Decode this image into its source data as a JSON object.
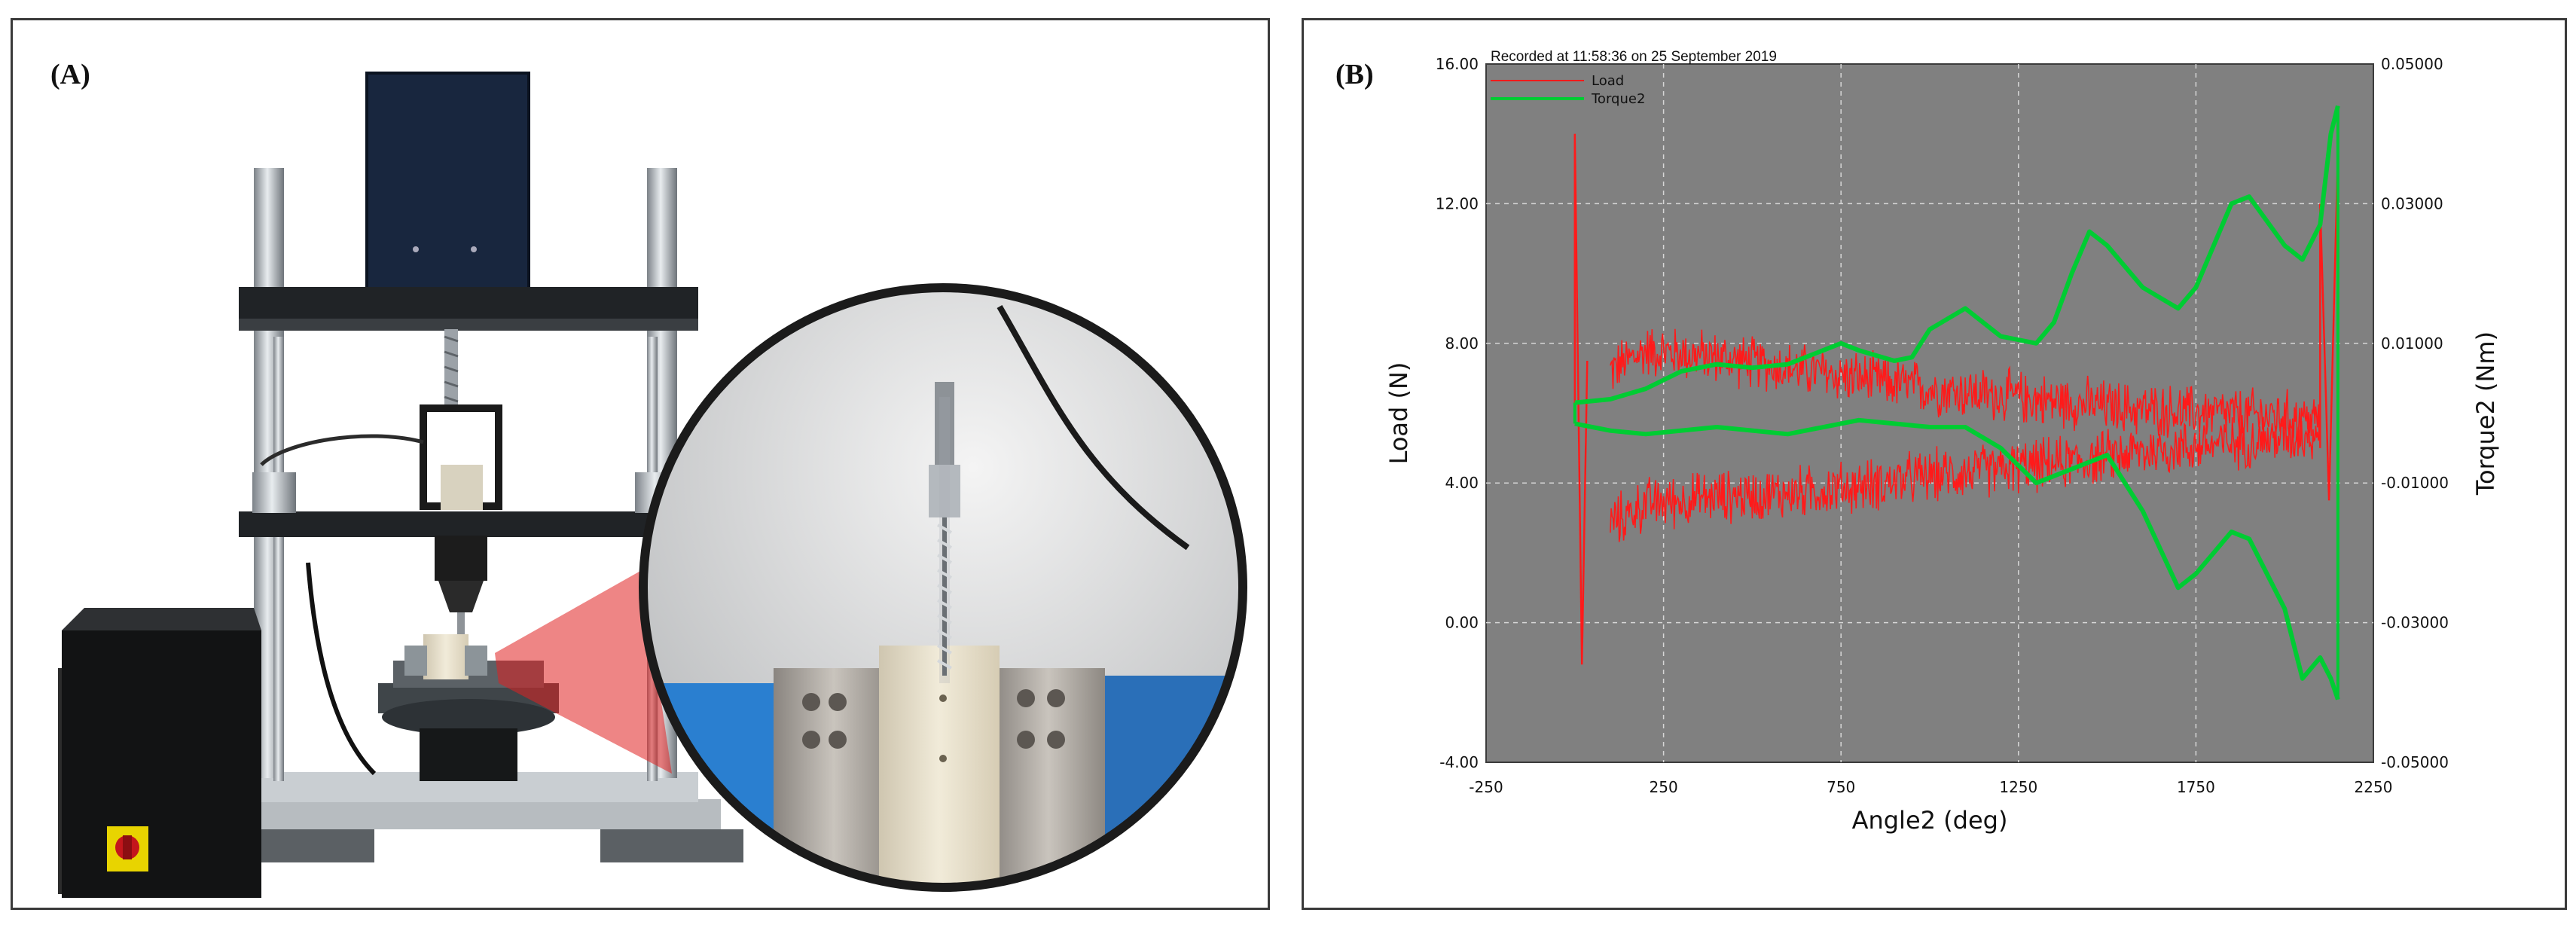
{
  "figure": {
    "panel_a": {
      "label": "(A)",
      "subject": "torque-testing-machine-photo"
    },
    "panel_b": {
      "label": "(B)"
    }
  },
  "colors": {
    "plot_bg": "#808080",
    "load": "#ff1a1a",
    "torque": "#00cc33",
    "grid": "#d6d6d6"
  },
  "chart_data": {
    "type": "line",
    "title": "",
    "header_note": "Recorded at 11:58:36 on 25 September 2019",
    "xlabel": "Angle2 (deg)",
    "ylabel": "Load (N)",
    "y2label": "Torque2 (Nm)",
    "xlim": [
      -250,
      2250
    ],
    "ylim": [
      -4,
      16
    ],
    "y2lim": [
      -0.05,
      0.05
    ],
    "x_ticks": [
      "-250",
      "250",
      "750",
      "1250",
      "1750",
      "2250"
    ],
    "y_ticks": [
      "-4.00",
      "0.00",
      "4.00",
      "8.00",
      "12.00",
      "16.00"
    ],
    "y2_ticks": [
      "-0.05000",
      "-0.03000",
      "-0.01000",
      "0.01000",
      "0.03000",
      "0.05000"
    ],
    "grid": true,
    "legend_position": "top-left",
    "series": [
      {
        "name": "Load",
        "axis": "left",
        "color": "#ff1a1a",
        "upper_band": {
          "x": [
            100,
            200,
            400,
            600,
            800,
            1000,
            1200,
            1400,
            1600,
            1800,
            2000,
            2100
          ],
          "y": [
            7.2,
            7.8,
            7.6,
            7.3,
            7.0,
            6.7,
            6.5,
            6.3,
            6.1,
            6.0,
            5.9,
            5.8
          ]
        },
        "lower_band": {
          "x": [
            100,
            200,
            400,
            600,
            800,
            1000,
            1200,
            1400,
            1600,
            1800,
            2000,
            2100
          ],
          "y": [
            2.8,
            3.4,
            3.6,
            3.7,
            3.9,
            4.2,
            4.4,
            4.6,
            4.9,
            5.1,
            5.3,
            5.5
          ]
        },
        "spikes": {
          "x": [
            0,
            20,
            2100,
            2125,
            2150
          ],
          "y": [
            14.0,
            -1.2,
            12.0,
            3.5,
            13.5
          ]
        },
        "noise_amplitude": 0.9
      },
      {
        "name": "Torque2",
        "axis": "right",
        "color": "#00cc33",
        "upper": {
          "x": [
            0,
            100,
            200,
            300,
            400,
            500,
            600,
            700,
            750,
            800,
            900,
            950,
            1000,
            1100,
            1200,
            1300,
            1350,
            1400,
            1450,
            1500,
            1600,
            1700,
            1750,
            1850,
            1900,
            2000,
            2050,
            2100,
            2130,
            2150
          ],
          "y": [
            0.0015,
            0.002,
            0.0035,
            0.006,
            0.007,
            0.0065,
            0.007,
            0.009,
            0.01,
            0.009,
            0.0075,
            0.008,
            0.012,
            0.015,
            0.011,
            0.01,
            0.013,
            0.02,
            0.026,
            0.024,
            0.018,
            0.015,
            0.018,
            0.03,
            0.031,
            0.024,
            0.022,
            0.027,
            0.04,
            0.044
          ]
        },
        "lower": {
          "x": [
            0,
            100,
            200,
            400,
            600,
            800,
            1000,
            1100,
            1200,
            1300,
            1400,
            1500,
            1600,
            1700,
            1750,
            1800,
            1850,
            1900,
            2000,
            2050,
            2100,
            2130,
            2150
          ],
          "y": [
            -0.0015,
            -0.0025,
            -0.003,
            -0.002,
            -0.003,
            -0.001,
            -0.002,
            -0.002,
            -0.005,
            -0.01,
            -0.008,
            -0.006,
            -0.014,
            -0.025,
            -0.023,
            -0.02,
            -0.017,
            -0.018,
            -0.028,
            -0.038,
            -0.035,
            -0.038,
            -0.041
          ]
        }
      }
    ]
  }
}
